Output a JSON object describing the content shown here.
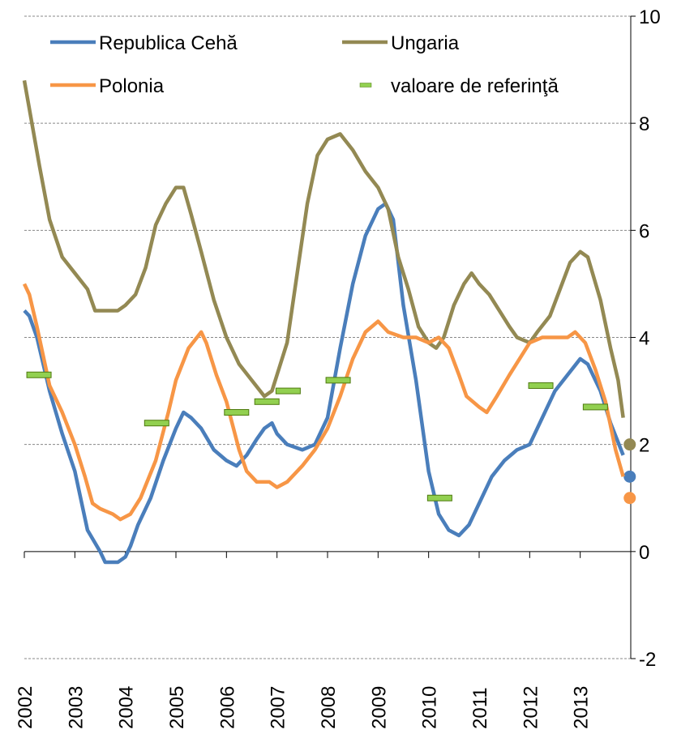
{
  "chart_data": {
    "type": "line",
    "xlim": [
      2002,
      2014
    ],
    "ylim": [
      -2,
      10
    ],
    "xticks": [
      2002,
      2003,
      2004,
      2005,
      2006,
      2007,
      2008,
      2009,
      2010,
      2011,
      2012,
      2013
    ],
    "yticks": [
      -2,
      0,
      2,
      4,
      6,
      8,
      10
    ],
    "grid": true,
    "series": [
      {
        "name": "Republica Cehă",
        "color": "#4a7ebb",
        "x": [
          2002.0,
          2002.1,
          2002.25,
          2002.5,
          2002.75,
          2003.0,
          2003.25,
          2003.5,
          2003.6,
          2003.85,
          2004.0,
          2004.1,
          2004.25,
          2004.5,
          2004.75,
          2005.0,
          2005.15,
          2005.3,
          2005.5,
          2005.75,
          2006.0,
          2006.2,
          2006.4,
          2006.6,
          2006.75,
          2006.9,
          2007.0,
          2007.2,
          2007.5,
          2007.75,
          2008.0,
          2008.25,
          2008.5,
          2008.75,
          2009.0,
          2009.15,
          2009.3,
          2009.5,
          2009.75,
          2010.0,
          2010.2,
          2010.4,
          2010.6,
          2010.8,
          2011.0,
          2011.25,
          2011.5,
          2011.75,
          2012.0,
          2012.25,
          2012.5,
          2012.75,
          2013.0,
          2013.15,
          2013.4,
          2013.6,
          2013.85
        ],
        "values": [
          4.5,
          4.4,
          4.0,
          3.0,
          2.2,
          1.5,
          0.4,
          0.0,
          -0.2,
          -0.2,
          -0.1,
          0.1,
          0.5,
          1.0,
          1.7,
          2.3,
          2.6,
          2.5,
          2.3,
          1.9,
          1.7,
          1.6,
          1.8,
          2.1,
          2.3,
          2.4,
          2.2,
          2.0,
          1.9,
          2.0,
          2.5,
          3.8,
          5.0,
          5.9,
          6.4,
          6.5,
          6.2,
          4.6,
          3.2,
          1.5,
          0.7,
          0.4,
          0.3,
          0.5,
          0.9,
          1.4,
          1.7,
          1.9,
          2.0,
          2.5,
          3.0,
          3.3,
          3.6,
          3.5,
          3.0,
          2.4,
          1.8
        ],
        "end_point": {
          "x": 2013.98,
          "y": 1.4
        }
      },
      {
        "name": "Ungaria",
        "color": "#938953",
        "x": [
          2002.0,
          2002.15,
          2002.3,
          2002.5,
          2002.75,
          2003.0,
          2003.25,
          2003.4,
          2003.6,
          2003.85,
          2004.0,
          2004.2,
          2004.4,
          2004.6,
          2004.8,
          2005.0,
          2005.15,
          2005.3,
          2005.5,
          2005.75,
          2006.0,
          2006.25,
          2006.5,
          2006.75,
          2006.9,
          2007.0,
          2007.2,
          2007.4,
          2007.6,
          2007.8,
          2008.0,
          2008.25,
          2008.5,
          2008.75,
          2009.0,
          2009.2,
          2009.4,
          2009.6,
          2009.8,
          2010.0,
          2010.15,
          2010.3,
          2010.5,
          2010.7,
          2010.85,
          2011.0,
          2011.2,
          2011.4,
          2011.6,
          2011.75,
          2012.0,
          2012.15,
          2012.4,
          2012.6,
          2012.8,
          2013.0,
          2013.15,
          2013.4,
          2013.6,
          2013.75,
          2013.85
        ],
        "values": [
          8.8,
          8.0,
          7.2,
          6.2,
          5.5,
          5.2,
          4.9,
          4.5,
          4.5,
          4.5,
          4.6,
          4.8,
          5.3,
          6.1,
          6.5,
          6.8,
          6.8,
          6.3,
          5.6,
          4.7,
          4.0,
          3.5,
          3.2,
          2.9,
          3.0,
          3.3,
          3.9,
          5.2,
          6.5,
          7.4,
          7.7,
          7.8,
          7.5,
          7.1,
          6.8,
          6.4,
          5.5,
          4.9,
          4.2,
          3.9,
          3.8,
          4.0,
          4.6,
          5.0,
          5.2,
          5.0,
          4.8,
          4.5,
          4.2,
          4.0,
          3.9,
          4.1,
          4.4,
          4.9,
          5.4,
          5.6,
          5.5,
          4.7,
          3.8,
          3.2,
          2.5
        ],
        "end_point": {
          "x": 2013.98,
          "y": 2.0
        }
      },
      {
        "name": "Polonia",
        "color": "#f79646",
        "x": [
          2002.0,
          2002.1,
          2002.25,
          2002.5,
          2002.75,
          2003.0,
          2003.2,
          2003.35,
          2003.5,
          2003.75,
          2003.9,
          2004.1,
          2004.3,
          2004.6,
          2004.85,
          2005.0,
          2005.25,
          2005.5,
          2005.6,
          2005.8,
          2006.0,
          2006.25,
          2006.4,
          2006.6,
          2006.85,
          2007.0,
          2007.2,
          2007.5,
          2007.75,
          2008.0,
          2008.25,
          2008.5,
          2008.75,
          2009.0,
          2009.2,
          2009.5,
          2009.75,
          2010.0,
          2010.2,
          2010.4,
          2010.6,
          2010.75,
          2011.0,
          2011.15,
          2011.35,
          2011.6,
          2011.8,
          2012.0,
          2012.25,
          2012.5,
          2012.75,
          2012.9,
          2013.1,
          2013.3,
          2013.5,
          2013.7,
          2013.85
        ],
        "values": [
          5.0,
          4.8,
          4.2,
          3.1,
          2.6,
          2.0,
          1.4,
          0.9,
          0.8,
          0.7,
          0.6,
          0.7,
          1.0,
          1.7,
          2.6,
          3.2,
          3.8,
          4.1,
          3.9,
          3.3,
          2.8,
          1.9,
          1.5,
          1.3,
          1.3,
          1.2,
          1.3,
          1.6,
          1.9,
          2.3,
          2.9,
          3.6,
          4.1,
          4.3,
          4.1,
          4.0,
          4.0,
          3.9,
          4.0,
          3.8,
          3.3,
          2.9,
          2.7,
          2.6,
          2.9,
          3.3,
          3.6,
          3.9,
          4.0,
          4.0,
          4.0,
          4.1,
          3.9,
          3.4,
          2.8,
          1.9,
          1.4
        ],
        "end_point": {
          "x": 2013.98,
          "y": 1.0
        }
      },
      {
        "name": "valoare de referinţă",
        "color": "#92d050",
        "marker": "dash",
        "x": [
          2002.29,
          2004.62,
          2006.2,
          2006.8,
          2007.22,
          2008.21,
          2010.22,
          2012.22,
          2013.3
        ],
        "values": [
          3.3,
          2.4,
          2.6,
          2.8,
          3.0,
          3.2,
          1.0,
          3.1,
          2.7
        ]
      }
    ]
  }
}
